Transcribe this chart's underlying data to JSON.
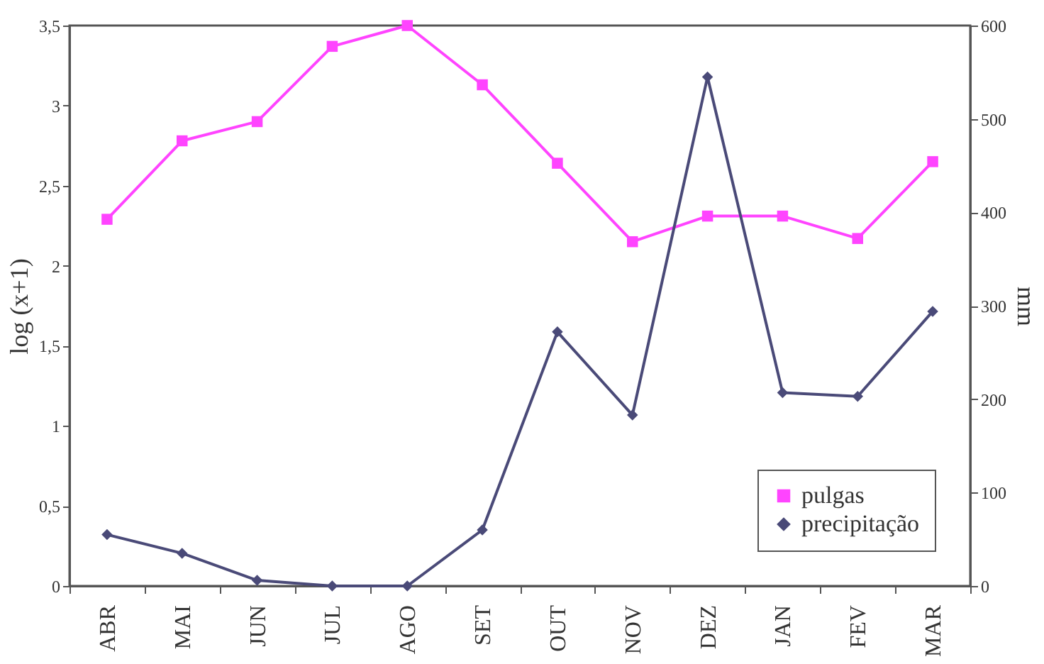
{
  "chart_data": {
    "type": "line",
    "xlabel": null,
    "ylabel": "log (x+1)",
    "y2label": "mm",
    "categories": [
      "ABR",
      "MAI",
      "JUN",
      "JUL",
      "AGO",
      "SET",
      "OUT",
      "NOV",
      "DEZ",
      "JAN",
      "FEV",
      "MAR"
    ],
    "series": [
      {
        "name": "pulgas",
        "color": "#ff44ff",
        "marker": "square",
        "values": [
          2.29,
          2.78,
          2.9,
          3.37,
          3.5,
          3.13,
          2.64,
          2.15,
          2.31,
          2.31,
          2.17,
          2.65
        ]
      },
      {
        "name": "precipitação",
        "color": "#4a4a78",
        "marker": "diamond",
        "axis": "y2",
        "values": [
          55,
          35,
          6,
          0,
          0,
          60,
          272,
          183,
          545,
          207,
          203,
          294
        ]
      }
    ],
    "ylim": [
      0,
      3.5
    ],
    "yticks": [
      0,
      {
        "value": 0.5,
        "label": "0,5"
      },
      1,
      {
        "value": 1.5,
        "label": "1,5"
      },
      2,
      {
        "value": 2.5,
        "label": "2,5"
      },
      3,
      {
        "value": 3.5,
        "label": "3,5"
      }
    ],
    "y2lim": [
      0,
      600
    ],
    "y2ticks": [
      0,
      100,
      200,
      300,
      400,
      500,
      600
    ],
    "grid": false,
    "legend": "bottom right",
    "line_style": "solid"
  }
}
